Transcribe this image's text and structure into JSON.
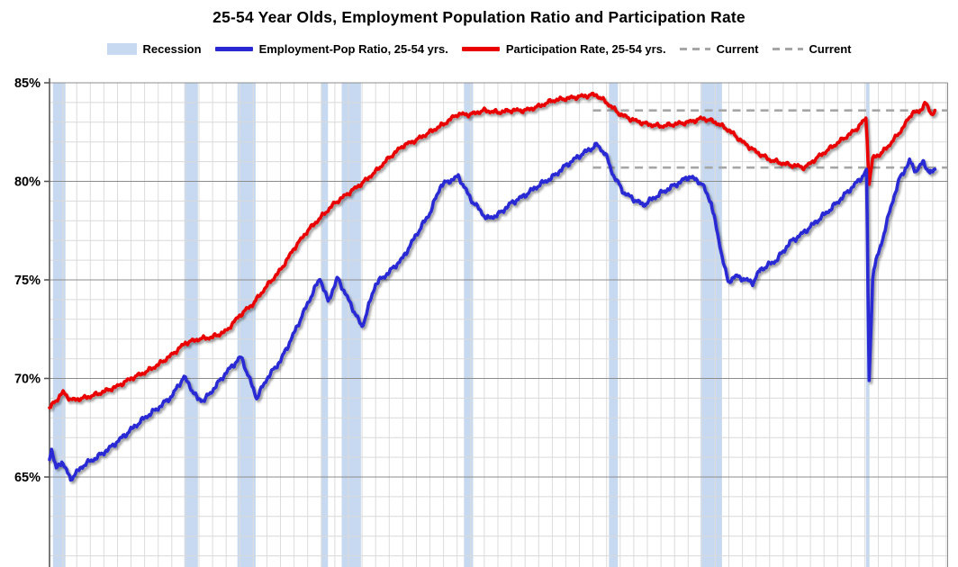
{
  "title": "25-54 Year Olds, Employment Population Ratio and Participation Rate",
  "legend": {
    "items": [
      {
        "type": "box",
        "label": "Recession",
        "color": "#c7d9f0"
      },
      {
        "type": "line",
        "label": "Employment-Pop Ratio, 25-54 yrs.",
        "color": "#2929d4"
      },
      {
        "type": "line",
        "label": "Participation Rate, 25-54 yrs.",
        "color": "#e90000"
      },
      {
        "type": "dash",
        "label": "Current",
        "color": "#a6a6a6"
      },
      {
        "type": "dash",
        "label": "Current",
        "color": "#a6a6a6"
      }
    ]
  },
  "chart_data": {
    "type": "line",
    "title": "25-54 Year Olds, Employment Population Ratio and Participation Rate",
    "x_domain_years": [
      1960,
      2026.1
    ],
    "y_axis": {
      "unit": "%",
      "label_min": 65,
      "label_max": 85,
      "major_step_pct": 5,
      "minor_step_pct": 1,
      "ticks": [
        {
          "value": 85,
          "label": "85%"
        },
        {
          "value": 80,
          "label": "80%"
        },
        {
          "value": 75,
          "label": "75%"
        },
        {
          "value": 70,
          "label": "70%"
        },
        {
          "value": 65,
          "label": "65%"
        }
      ]
    },
    "grid": {
      "x_interval_years": 1,
      "horizontal_minor_on": true,
      "horizontal_major_on": true
    },
    "recessions": [
      [
        1960.25,
        1961.17
      ],
      [
        1969.92,
        1970.92
      ],
      [
        1973.83,
        1975.17
      ],
      [
        1980.0,
        1980.5
      ],
      [
        1981.5,
        1982.92
      ],
      [
        1990.5,
        1991.17
      ],
      [
        2001.17,
        2001.83
      ],
      [
        2007.92,
        2009.5
      ],
      [
        2020.08,
        2020.33
      ]
    ],
    "current_lines": [
      {
        "name": "Current",
        "series": "Participation Rate, 25-54 yrs.",
        "value": 83.6,
        "start_year": 2000.0,
        "color": "#a6a6a6"
      },
      {
        "name": "Current",
        "series": "Employment-Pop Ratio, 25-54 yrs.",
        "value": 80.7,
        "start_year": 2000.0,
        "color": "#a6a6a6"
      }
    ],
    "series": [
      {
        "name": "Employment-Pop Ratio, 25-54 yrs.",
        "color": "#2929d4",
        "anchors": [
          [
            1960.0,
            66.0
          ],
          [
            1960.15,
            66.4
          ],
          [
            1960.5,
            65.4
          ],
          [
            1960.9,
            65.8
          ],
          [
            1961.55,
            64.9
          ],
          [
            1962.5,
            65.6
          ],
          [
            1963.5,
            66.0
          ],
          [
            1964.5,
            66.5
          ],
          [
            1966.0,
            67.4
          ],
          [
            1967.0,
            68.0
          ],
          [
            1968.0,
            68.5
          ],
          [
            1969.0,
            69.1
          ],
          [
            1969.9,
            70.1
          ],
          [
            1970.9,
            68.95
          ],
          [
            1971.4,
            68.9
          ],
          [
            1972.0,
            69.4
          ],
          [
            1973.0,
            70.3
          ],
          [
            1974.1,
            71.1
          ],
          [
            1975.25,
            69.0
          ],
          [
            1976.0,
            70.0
          ],
          [
            1977.0,
            70.9
          ],
          [
            1978.0,
            72.3
          ],
          [
            1979.0,
            73.8
          ],
          [
            1979.9,
            75.1
          ],
          [
            1980.5,
            73.9
          ],
          [
            1981.2,
            75.1
          ],
          [
            1983.0,
            72.6
          ],
          [
            1984.0,
            74.8
          ],
          [
            1985.0,
            75.4
          ],
          [
            1986.0,
            76.1
          ],
          [
            1987.0,
            77.3
          ],
          [
            1988.0,
            78.4
          ],
          [
            1988.8,
            79.8
          ],
          [
            1990.1,
            80.25
          ],
          [
            1991.0,
            79.1
          ],
          [
            1992.2,
            78.1
          ],
          [
            1993.0,
            78.3
          ],
          [
            1994.0,
            78.9
          ],
          [
            1995.0,
            79.3
          ],
          [
            1996.0,
            79.8
          ],
          [
            1997.0,
            80.2
          ],
          [
            1998.0,
            80.8
          ],
          [
            1999.0,
            81.3
          ],
          [
            2000.3,
            81.85
          ],
          [
            2000.9,
            81.4
          ],
          [
            2001.5,
            80.3
          ],
          [
            2002.3,
            79.4
          ],
          [
            2003.7,
            78.8
          ],
          [
            2005.0,
            79.4
          ],
          [
            2006.0,
            79.8
          ],
          [
            2007.1,
            80.25
          ],
          [
            2008.0,
            79.9
          ],
          [
            2008.7,
            78.9
          ],
          [
            2009.5,
            76.2
          ],
          [
            2009.95,
            74.85
          ],
          [
            2010.4,
            75.2
          ],
          [
            2011.1,
            75.05
          ],
          [
            2011.75,
            74.85
          ],
          [
            2012.3,
            75.5
          ],
          [
            2013.5,
            76.0
          ],
          [
            2014.5,
            76.9
          ],
          [
            2015.5,
            77.4
          ],
          [
            2016.5,
            78.0
          ],
          [
            2017.5,
            78.6
          ],
          [
            2018.5,
            79.3
          ],
          [
            2019.5,
            80.0
          ],
          [
            2020.13,
            80.5
          ],
          [
            2020.32,
            69.8
          ],
          [
            2020.6,
            75.4
          ],
          [
            2021.2,
            76.8
          ],
          [
            2022.0,
            78.9
          ],
          [
            2022.6,
            80.2
          ],
          [
            2023.3,
            81.0
          ],
          [
            2023.8,
            80.5
          ],
          [
            2024.3,
            81.0
          ],
          [
            2024.8,
            80.4
          ],
          [
            2025.17,
            80.6
          ]
        ]
      },
      {
        "name": "Participation Rate, 25-54 yrs.",
        "color": "#e90000",
        "anchors": [
          [
            1960.0,
            68.5
          ],
          [
            1961.0,
            69.3
          ],
          [
            1961.6,
            68.9
          ],
          [
            1962.5,
            69.0
          ],
          [
            1963.5,
            69.2
          ],
          [
            1965.0,
            69.6
          ],
          [
            1966.0,
            70.0
          ],
          [
            1967.0,
            70.3
          ],
          [
            1968.0,
            70.7
          ],
          [
            1969.0,
            71.2
          ],
          [
            1970.0,
            71.8
          ],
          [
            1971.0,
            72.0
          ],
          [
            1972.0,
            72.1
          ],
          [
            1973.0,
            72.4
          ],
          [
            1974.0,
            73.2
          ],
          [
            1975.0,
            73.8
          ],
          [
            1976.0,
            74.7
          ],
          [
            1977.0,
            75.5
          ],
          [
            1978.0,
            76.6
          ],
          [
            1979.0,
            77.5
          ],
          [
            1980.0,
            78.2
          ],
          [
            1981.0,
            78.9
          ],
          [
            1982.0,
            79.4
          ],
          [
            1983.0,
            79.9
          ],
          [
            1984.0,
            80.5
          ],
          [
            1985.0,
            81.2
          ],
          [
            1986.0,
            81.8
          ],
          [
            1987.0,
            82.1
          ],
          [
            1988.0,
            82.5
          ],
          [
            1989.0,
            82.9
          ],
          [
            1990.0,
            83.4
          ],
          [
            1991.0,
            83.4
          ],
          [
            1992.0,
            83.6
          ],
          [
            1993.0,
            83.5
          ],
          [
            1994.0,
            83.6
          ],
          [
            1995.0,
            83.6
          ],
          [
            1996.0,
            83.8
          ],
          [
            1997.0,
            84.1
          ],
          [
            1998.0,
            84.2
          ],
          [
            1999.0,
            84.3
          ],
          [
            2000.2,
            84.4
          ],
          [
            2001.0,
            84.0
          ],
          [
            2002.0,
            83.4
          ],
          [
            2003.0,
            83.1
          ],
          [
            2004.0,
            82.9
          ],
          [
            2005.0,
            82.8
          ],
          [
            2006.0,
            82.9
          ],
          [
            2007.0,
            83.0
          ],
          [
            2008.1,
            83.2
          ],
          [
            2009.0,
            83.0
          ],
          [
            2010.0,
            82.6
          ],
          [
            2011.0,
            82.0
          ],
          [
            2012.0,
            81.5
          ],
          [
            2013.0,
            81.1
          ],
          [
            2014.0,
            80.9
          ],
          [
            2015.6,
            80.7
          ],
          [
            2016.5,
            81.2
          ],
          [
            2017.5,
            81.7
          ],
          [
            2018.5,
            82.2
          ],
          [
            2019.3,
            82.6
          ],
          [
            2020.1,
            83.2
          ],
          [
            2020.32,
            79.9
          ],
          [
            2020.6,
            81.2
          ],
          [
            2021.2,
            81.4
          ],
          [
            2022.0,
            82.0
          ],
          [
            2022.8,
            82.7
          ],
          [
            2023.5,
            83.5
          ],
          [
            2024.0,
            83.5
          ],
          [
            2024.45,
            84.0
          ],
          [
            2024.9,
            83.4
          ],
          [
            2025.17,
            83.6
          ]
        ]
      }
    ],
    "colors": {
      "recession_band": "#c7d9f0",
      "minor_grid": "#d9d9d9",
      "major_grid": "#8c8c8c",
      "axis": "#4d4d4d",
      "current_dash": "#a6a6a6"
    }
  }
}
